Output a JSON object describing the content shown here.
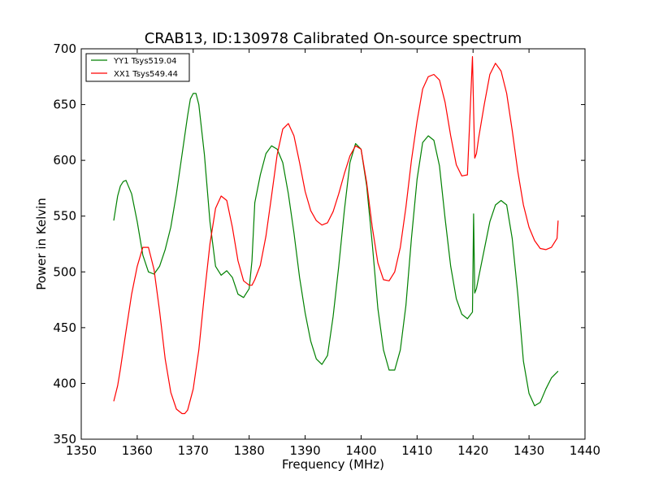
{
  "chart_data": {
    "type": "line",
    "title": "CRAB13, ID:130978 Calibrated On-source spectrum",
    "xlabel": "Frequency (MHz)",
    "ylabel": "Power in Kelvin",
    "xlim": [
      1350,
      1440
    ],
    "ylim": [
      350,
      700
    ],
    "xticks": [
      1350,
      1360,
      1370,
      1380,
      1390,
      1400,
      1410,
      1420,
      1430,
      1440
    ],
    "yticks": [
      350,
      400,
      450,
      500,
      550,
      600,
      650,
      700
    ],
    "grid": false,
    "legend_position": "top-left",
    "series": [
      {
        "name": "YY1 Tsys519.04",
        "color": "#008000",
        "x": [
          1355.8,
          1356.5,
          1357,
          1357.5,
          1358,
          1359,
          1360,
          1361,
          1362,
          1363,
          1364,
          1365,
          1366,
          1367,
          1368,
          1369,
          1369.5,
          1370,
          1370.5,
          1371,
          1372,
          1373,
          1374,
          1375,
          1376,
          1377,
          1378,
          1379,
          1380,
          1380.5,
          1381,
          1382,
          1383,
          1384,
          1385,
          1386,
          1387,
          1388,
          1389,
          1390,
          1391,
          1392,
          1393,
          1394,
          1395,
          1396,
          1397,
          1398,
          1399,
          1400,
          1401,
          1402,
          1403,
          1404,
          1405,
          1406,
          1407,
          1408,
          1409,
          1410,
          1411,
          1412,
          1413,
          1414,
          1415,
          1416,
          1417,
          1418,
          1419,
          1419.9,
          1420.1,
          1420.3,
          1420.6,
          1421,
          1422,
          1423,
          1424,
          1425,
          1426,
          1427,
          1428,
          1429,
          1430,
          1431,
          1432,
          1433,
          1434,
          1435.2
        ],
        "y": [
          546,
          568,
          577,
          581,
          582,
          570,
          545,
          515,
          500,
          498,
          505,
          520,
          540,
          570,
          605,
          640,
          655,
          660,
          660,
          650,
          605,
          545,
          505,
          497,
          501,
          495,
          480,
          477,
          485,
          510,
          562,
          587,
          606,
          613,
          610,
          598,
          570,
          535,
          495,
          463,
          438,
          422,
          417,
          425,
          460,
          505,
          555,
          598,
          615,
          610,
          577,
          525,
          467,
          430,
          412,
          412,
          430,
          470,
          530,
          583,
          616,
          622,
          618,
          595,
          548,
          505,
          476,
          462,
          458,
          464,
          552,
          481,
          485,
          495,
          520,
          545,
          560,
          564,
          560,
          530,
          480,
          420,
          391,
          380,
          383,
          395,
          405,
          411
        ]
      },
      {
        "name": "XX1 Tsys549.44",
        "color": "#ff0000",
        "x": [
          1355.8,
          1356.5,
          1357,
          1358,
          1359,
          1360,
          1361,
          1362,
          1363,
          1364,
          1365,
          1366,
          1367,
          1368,
          1368.5,
          1369,
          1370,
          1371,
          1372,
          1373,
          1374,
          1375,
          1376,
          1377,
          1378,
          1379,
          1380,
          1380.5,
          1381,
          1382,
          1383,
          1384,
          1385,
          1386,
          1387,
          1388,
          1389,
          1390,
          1391,
          1392,
          1393,
          1394,
          1395,
          1396,
          1397,
          1398,
          1399,
          1400,
          1401,
          1402,
          1403,
          1404,
          1405,
          1406,
          1407,
          1408,
          1409,
          1410,
          1411,
          1412,
          1413,
          1414,
          1415,
          1416,
          1417,
          1418,
          1419,
          1419.9,
          1420.1,
          1420.3,
          1420.6,
          1421,
          1422,
          1423,
          1424,
          1425,
          1426,
          1427,
          1428,
          1429,
          1430,
          1431,
          1432,
          1433,
          1434,
          1435,
          1435.2
        ],
        "y": [
          384,
          398,
          413,
          447,
          480,
          505,
          522,
          522,
          502,
          465,
          422,
          392,
          377,
          373,
          373,
          376,
          395,
          430,
          480,
          525,
          557,
          568,
          564,
          540,
          510,
          492,
          488,
          488,
          493,
          506,
          532,
          568,
          605,
          628,
          633,
          622,
          598,
          572,
          555,
          546,
          542,
          544,
          554,
          570,
          588,
          604,
          613,
          610,
          580,
          540,
          508,
          493,
          492,
          500,
          522,
          558,
          600,
          635,
          664,
          675,
          677,
          672,
          652,
          622,
          596,
          586,
          587,
          693,
          645,
          602,
          606,
          620,
          650,
          677,
          687,
          680,
          660,
          627,
          590,
          560,
          540,
          528,
          521,
          520,
          522,
          530,
          546
        ]
      }
    ]
  }
}
